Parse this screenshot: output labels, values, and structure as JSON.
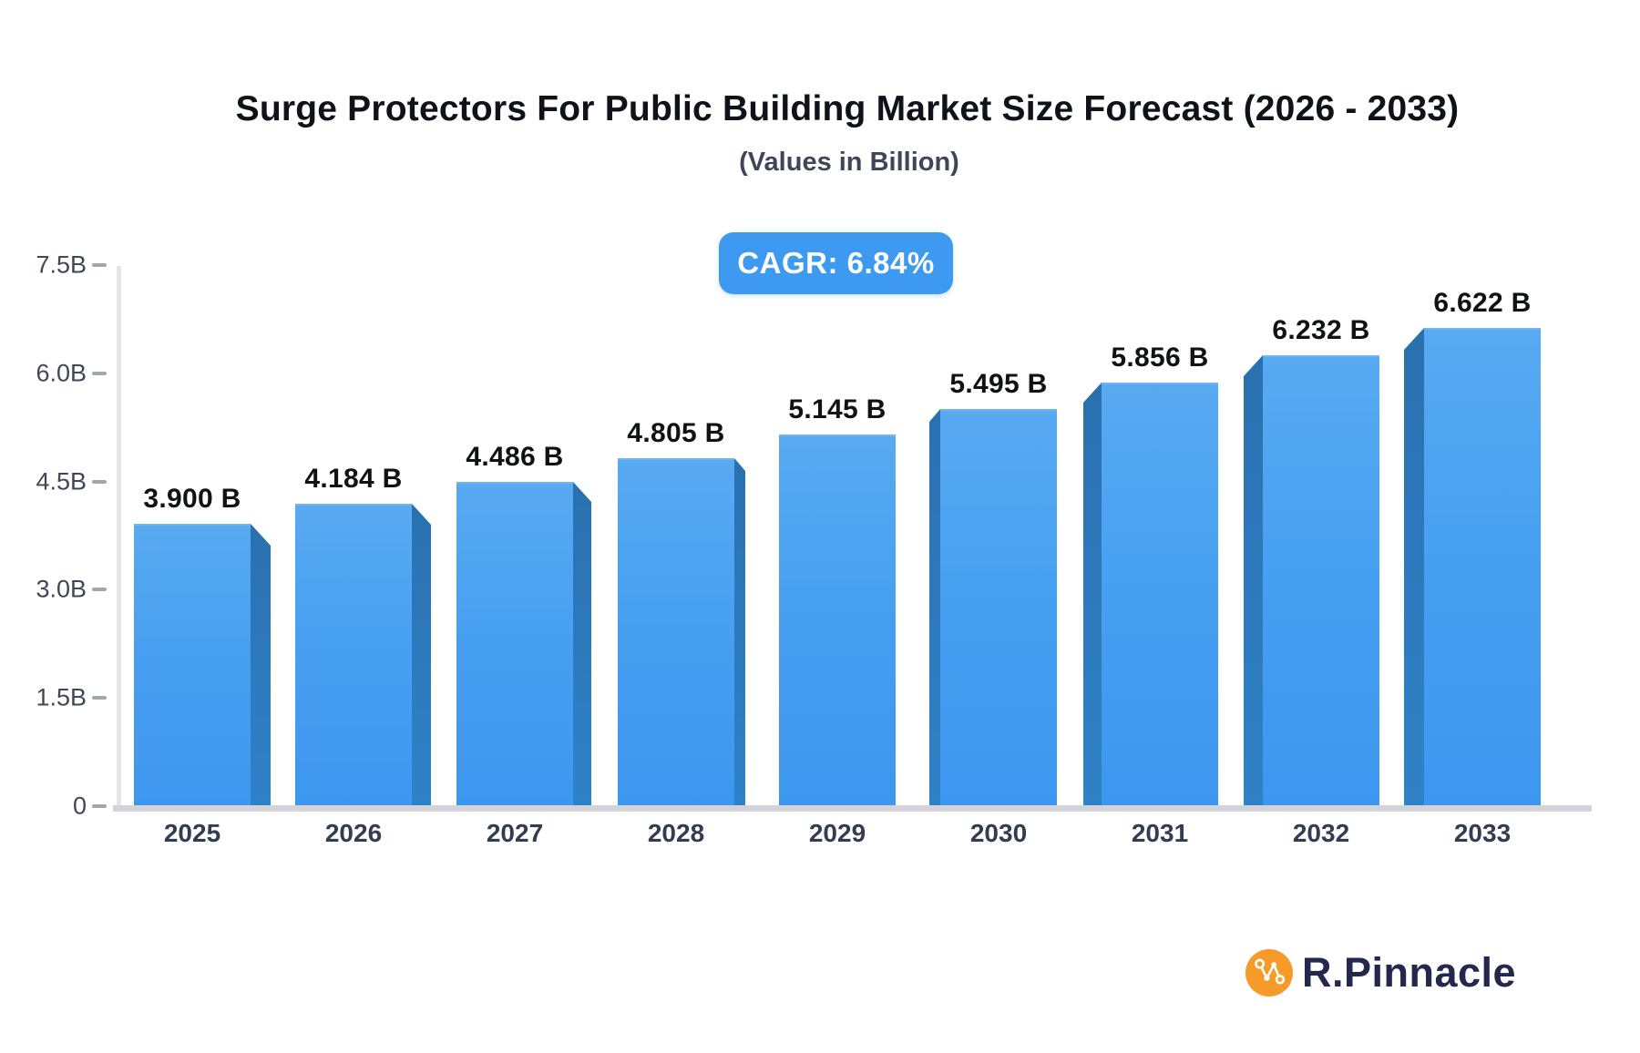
{
  "header": {
    "title": "Surge Protectors For Public Building Market Size Forecast (2026 - 2033)",
    "subtitle": "(Values in Billion)",
    "cagr_label": "CAGR: 6.84%"
  },
  "brand": {
    "name": "R.Pinnacle"
  },
  "colors": {
    "badge_bg": "#3d9af0",
    "bar_face_top": "#58aaf1",
    "bar_face_bottom": "#3e97ef",
    "bar_side": "#2d77ba",
    "baseline": "#d2d4d9",
    "axis_line": "#e4e5e9",
    "logo_circle": "#f69b2a",
    "logo_text": "#23284d"
  },
  "chart_data": {
    "type": "bar",
    "title": "Surge Protectors For Public Building Market Size Forecast (2026 - 2033)",
    "subtitle": "(Values in Billion)",
    "annotation": "CAGR: 6.84%",
    "categories": [
      "2025",
      "2026",
      "2027",
      "2028",
      "2029",
      "2030",
      "2031",
      "2032",
      "2033"
    ],
    "values": [
      3.9,
      4.184,
      4.486,
      4.805,
      5.145,
      5.495,
      5.856,
      6.232,
      6.622
    ],
    "value_labels": [
      "3.900 B",
      "4.184 B",
      "4.486 B",
      "4.805 B",
      "5.145 B",
      "5.495 B",
      "5.856 B",
      "6.232 B",
      "6.622 B"
    ],
    "xlabel": "",
    "ylabel": "",
    "ylim": [
      0,
      7.5
    ],
    "yticks": [
      {
        "label": "0",
        "value": 0
      },
      {
        "label": "1.5B",
        "value": 1.5
      },
      {
        "label": "3.0B",
        "value": 3.0
      },
      {
        "label": "4.5B",
        "value": 4.5
      },
      {
        "label": "6.0B",
        "value": 6.0
      },
      {
        "label": "7.5B",
        "value": 7.5
      }
    ],
    "grid": false,
    "legend": false,
    "units": "Billion"
  }
}
